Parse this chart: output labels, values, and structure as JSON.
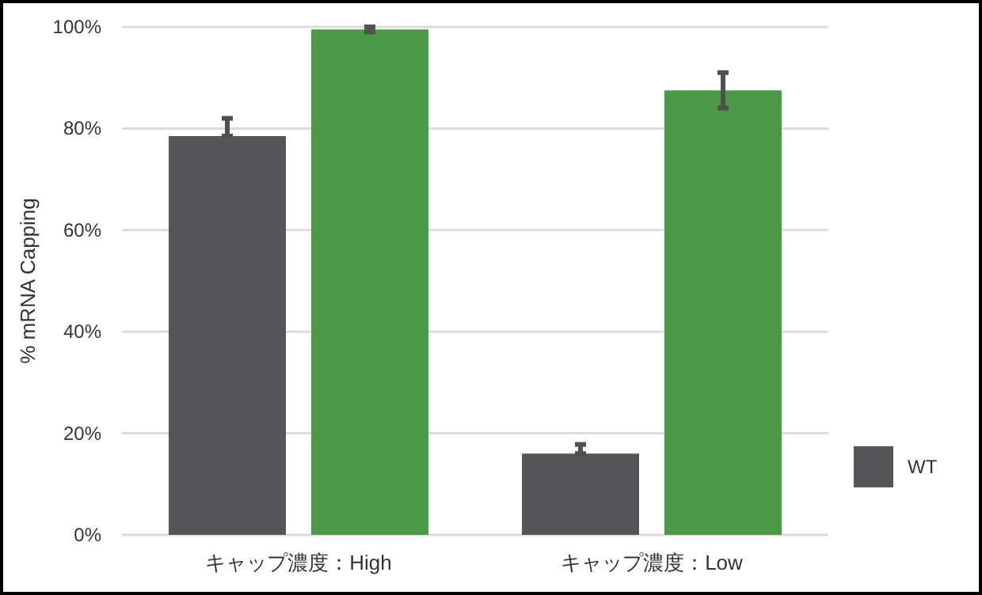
{
  "chart_data": {
    "type": "bar",
    "ylabel": "% mRNA Capping",
    "categories": [
      "キャップ濃度：High",
      "キャップ濃度：Low"
    ],
    "series": [
      {
        "name": "WT",
        "color": "#55565a",
        "values": [
          78.5,
          16
        ],
        "errors": [
          [
            78.5,
            82
          ],
          [
            16,
            17.8
          ]
        ]
      },
      {
        "color": "#4a9a45",
        "values": [
          99.5,
          87.5
        ],
        "errors": [
          [
            99,
            100
          ],
          [
            84,
            91
          ]
        ]
      }
    ],
    "ylim": [
      0,
      100
    ],
    "yticks": [
      {
        "value": 0,
        "label": "0%"
      },
      {
        "value": 20,
        "label": "20%"
      },
      {
        "value": 40,
        "label": "40%"
      },
      {
        "value": 60,
        "label": "60%"
      },
      {
        "value": 80,
        "label": "80%"
      },
      {
        "value": 100,
        "label": "100%"
      }
    ],
    "grid": "y",
    "legend": "bottom right"
  }
}
